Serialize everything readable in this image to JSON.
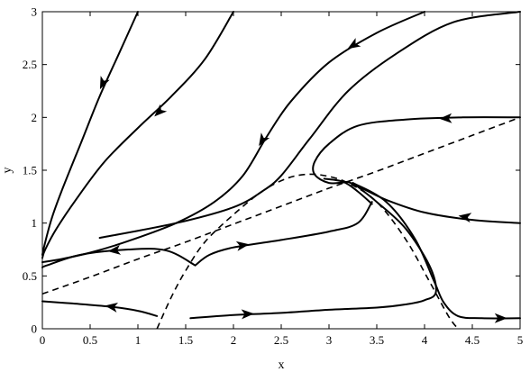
{
  "chart_data": {
    "type": "line",
    "title": "",
    "xlabel": "x",
    "ylabel": "y",
    "xlim": [
      0,
      5
    ],
    "ylim": [
      0,
      3
    ],
    "xticks": [
      "0",
      "0.5",
      "1",
      "1.5",
      "2",
      "2.5",
      "3",
      "3.5",
      "4",
      "4.5",
      "5"
    ],
    "yticks": [
      "0",
      "0.5",
      "1",
      "1.5",
      "2",
      "2.5",
      "3"
    ],
    "grid": false,
    "legend": "none",
    "nullclines": [
      {
        "style": "dashed",
        "points": [
          [
            0,
            0.33
          ],
          [
            0.5,
            0.49
          ],
          [
            1,
            0.66
          ],
          [
            1.5,
            0.82
          ],
          [
            2,
            0.99
          ],
          [
            2.5,
            1.16
          ],
          [
            3,
            1.33
          ],
          [
            3.5,
            1.49
          ],
          [
            4,
            1.66
          ],
          [
            4.5,
            1.83
          ],
          [
            5,
            2.0
          ]
        ]
      },
      {
        "style": "dashed",
        "points": [
          [
            1.2,
            0.0
          ],
          [
            1.35,
            0.3
          ],
          [
            1.5,
            0.55
          ],
          [
            1.7,
            0.82
          ],
          [
            2.0,
            1.08
          ],
          [
            2.3,
            1.3
          ],
          [
            2.55,
            1.42
          ],
          [
            2.75,
            1.46
          ],
          [
            2.95,
            1.45
          ],
          [
            3.2,
            1.38
          ],
          [
            3.5,
            1.2
          ],
          [
            3.8,
            0.85
          ],
          [
            4.05,
            0.45
          ],
          [
            4.25,
            0.12
          ],
          [
            4.35,
            0.0
          ]
        ]
      }
    ],
    "trajectories": [
      {
        "points": [
          [
            1.0,
            3.0
          ],
          [
            0.8,
            2.6
          ],
          [
            0.6,
            2.2
          ],
          [
            0.4,
            1.75
          ],
          [
            0.2,
            1.3
          ],
          [
            0.1,
            1.05
          ],
          [
            0.03,
            0.82
          ],
          [
            0.0,
            0.7
          ]
        ],
        "arrows": [
          [
            0.63,
            2.32
          ]
        ]
      },
      {
        "points": [
          [
            2.0,
            3.0
          ],
          [
            1.7,
            2.55
          ],
          [
            1.35,
            2.2
          ],
          [
            1.0,
            1.9
          ],
          [
            0.65,
            1.58
          ],
          [
            0.35,
            1.22
          ],
          [
            0.15,
            0.95
          ],
          [
            0.03,
            0.75
          ],
          [
            0.0,
            0.67
          ]
        ],
        "arrows": [
          [
            1.22,
            2.05
          ]
        ]
      },
      {
        "points": [
          [
            4.0,
            3.0
          ],
          [
            3.5,
            2.8
          ],
          [
            3.0,
            2.52
          ],
          [
            2.6,
            2.15
          ],
          [
            2.35,
            1.82
          ],
          [
            2.1,
            1.45
          ],
          [
            1.8,
            1.2
          ],
          [
            1.4,
            1.0
          ],
          [
            0.9,
            0.83
          ],
          [
            0.5,
            0.72
          ],
          [
            0.2,
            0.66
          ],
          [
            0.0,
            0.63
          ]
        ],
        "arrows": [
          [
            3.25,
            2.68
          ],
          [
            2.3,
            1.78
          ]
        ]
      },
      {
        "points": [
          [
            5.0,
            3.0
          ],
          [
            4.3,
            2.9
          ],
          [
            3.7,
            2.6
          ],
          [
            3.2,
            2.25
          ],
          [
            2.8,
            1.8
          ],
          [
            2.5,
            1.45
          ],
          [
            2.3,
            1.3
          ],
          [
            2.0,
            1.15
          ],
          [
            1.4,
            1.0
          ],
          [
            0.6,
            0.86
          ]
        ],
        "arrows": []
      },
      {
        "points": [
          [
            5.0,
            2.0
          ],
          [
            4.4,
            2.0
          ],
          [
            3.8,
            1.98
          ],
          [
            3.3,
            1.92
          ],
          [
            3.0,
            1.75
          ],
          [
            2.85,
            1.58
          ],
          [
            2.85,
            1.46
          ],
          [
            3.0,
            1.38
          ],
          [
            3.2,
            1.39
          ]
        ],
        "arrows": [
          [
            4.22,
            1.99
          ]
        ]
      },
      {
        "points": [
          [
            5.0,
            1.0
          ],
          [
            4.5,
            1.03
          ],
          [
            4.0,
            1.1
          ],
          [
            3.6,
            1.22
          ],
          [
            3.3,
            1.35
          ],
          [
            3.2,
            1.39
          ]
        ],
        "arrows": [
          [
            4.42,
            1.06
          ]
        ]
      },
      {
        "points": [
          [
            3.45,
            1.18
          ],
          [
            3.3,
            1.3
          ],
          [
            3.15,
            1.39
          ],
          [
            2.95,
            1.42
          ]
        ],
        "arrows": []
      },
      {
        "points": [
          [
            3.25,
            1.38
          ],
          [
            3.6,
            1.2
          ],
          [
            3.9,
            0.85
          ],
          [
            4.1,
            0.45
          ],
          [
            4.2,
            0.25
          ],
          [
            4.35,
            0.12
          ],
          [
            4.6,
            0.1
          ],
          [
            5.0,
            0.1
          ]
        ],
        "arrows": [
          [
            4.8,
            0.1
          ]
        ]
      },
      {
        "points": [
          [
            1.6,
            0.6
          ],
          [
            1.3,
            0.74
          ],
          [
            0.9,
            0.75
          ],
          [
            0.4,
            0.7
          ],
          [
            0.05,
            0.6
          ],
          [
            0.0,
            0.58
          ]
        ],
        "arrows": [
          [
            0.75,
            0.74
          ]
        ]
      },
      {
        "points": [
          [
            1.6,
            0.6
          ],
          [
            1.75,
            0.7
          ],
          [
            2.0,
            0.77
          ],
          [
            2.5,
            0.84
          ],
          [
            3.0,
            0.92
          ],
          [
            3.3,
            1.0
          ],
          [
            3.45,
            1.2
          ]
        ],
        "arrows": [
          [
            2.1,
            0.79
          ]
        ]
      },
      {
        "points": [
          [
            1.2,
            0.12
          ],
          [
            1.0,
            0.17
          ],
          [
            0.7,
            0.21
          ],
          [
            0.3,
            0.24
          ],
          [
            0.0,
            0.26
          ]
        ],
        "arrows": [
          [
            0.72,
            0.21
          ]
        ]
      },
      {
        "points": [
          [
            1.55,
            0.1
          ],
          [
            2.0,
            0.13
          ],
          [
            2.5,
            0.15
          ],
          [
            3.0,
            0.18
          ],
          [
            3.5,
            0.2
          ],
          [
            3.8,
            0.23
          ],
          [
            4.0,
            0.27
          ],
          [
            4.12,
            0.35
          ],
          [
            4.05,
            0.6
          ],
          [
            3.8,
            0.95
          ],
          [
            3.5,
            1.2
          ],
          [
            3.25,
            1.38
          ]
        ],
        "arrows": [
          [
            2.15,
            0.14
          ]
        ]
      }
    ]
  }
}
